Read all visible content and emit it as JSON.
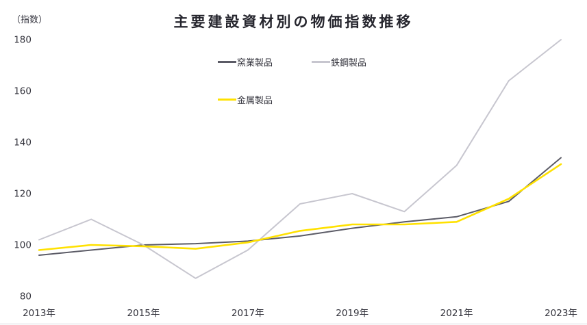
{
  "header": {
    "unit_label": "（指数）",
    "title": "主要建設資材別の物価指数推移"
  },
  "colors": {
    "ceramic_line": "#5B5B66",
    "steel_line": "#C7C6CF",
    "metal_line": "#FFE100",
    "axis_text": "#33333C",
    "baseline": "#D9D9DE",
    "title_text": "#26262E"
  },
  "legend": {
    "items": [
      {
        "label": "窯業製品",
        "color": "#5B5B66"
      },
      {
        "label": "鉄鋼製品",
        "color": "#C7C6CF"
      },
      {
        "label": "金属製品",
        "color": "#FFE100"
      }
    ]
  },
  "chart_data": {
    "type": "line",
    "title": "主要建設資材別の物価指数推移",
    "ylabel": "（指数）",
    "xlabel": "",
    "x": [
      2013,
      2014,
      2015,
      2016,
      2017,
      2018,
      2019,
      2020,
      2021,
      2022,
      2023
    ],
    "x_tick_years": [
      2013,
      2015,
      2017,
      2019,
      2021,
      2023
    ],
    "x_tick_labels": [
      "2013年",
      "2015年",
      "2017年",
      "2019年",
      "2021年",
      "2023年"
    ],
    "ylim": [
      80,
      180
    ],
    "yticks": [
      80,
      100,
      120,
      140,
      160,
      180
    ],
    "grid": false,
    "legend_position": "top",
    "series": [
      {
        "name": "窯業製品",
        "color": "#5B5B66",
        "stroke_width": 2,
        "values": [
          96,
          98,
          100,
          100.5,
          101.5,
          103.5,
          106.5,
          109,
          111,
          117,
          134
        ]
      },
      {
        "name": "鉄鋼製品",
        "color": "#C7C6CF",
        "stroke_width": 2,
        "values": [
          102,
          110,
          100,
          87,
          98,
          116,
          120,
          113,
          131,
          164,
          180
        ]
      },
      {
        "name": "金属製品",
        "color": "#FFE100",
        "stroke_width": 2.6,
        "values": [
          98,
          100,
          99.5,
          98.5,
          101,
          105.5,
          108,
          108,
          109,
          118,
          131.5
        ]
      }
    ]
  }
}
